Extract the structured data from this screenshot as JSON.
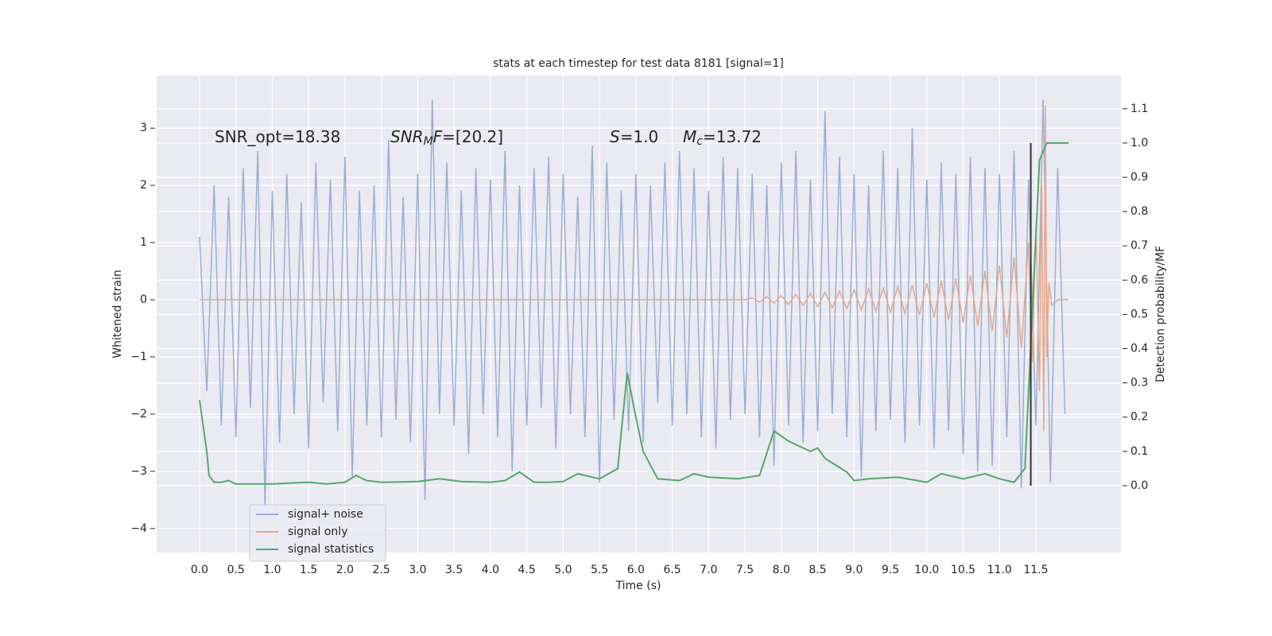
{
  "chart_data": {
    "type": "line",
    "title": "stats at each timestep for test data 8181 [signal=1]",
    "xlabel": "Time (s)",
    "ylabel": "Whitened strain",
    "y2label": "Detection probability/MF",
    "grid": true,
    "legend": "lower left",
    "xlim": [
      -0.59,
      12.67
    ],
    "ylim": [
      -4.42,
      3.92
    ],
    "y2lim": [
      -0.195,
      1.197
    ],
    "xticks": [
      {
        "value": 0,
        "label": "0.0"
      },
      {
        "value": 0.5,
        "label": "0.5"
      },
      {
        "value": 1,
        "label": "1.0"
      },
      {
        "value": 1.5,
        "label": "1.5"
      },
      {
        "value": 2,
        "label": "2.0"
      },
      {
        "value": 2.5,
        "label": "2.5"
      },
      {
        "value": 3,
        "label": "3.0"
      },
      {
        "value": 3.5,
        "label": "3.5"
      },
      {
        "value": 4,
        "label": "4.0"
      },
      {
        "value": 4.5,
        "label": "4.5"
      },
      {
        "value": 5,
        "label": "5.0"
      },
      {
        "value": 5.5,
        "label": "5.5"
      },
      {
        "value": 6,
        "label": "6.0"
      },
      {
        "value": 6.5,
        "label": "6.5"
      },
      {
        "value": 7,
        "label": "7.0"
      },
      {
        "value": 7.5,
        "label": "7.5"
      },
      {
        "value": 8,
        "label": "8.0"
      },
      {
        "value": 8.5,
        "label": "8.5"
      },
      {
        "value": 9,
        "label": "9.0"
      },
      {
        "value": 9.5,
        "label": "9.5"
      },
      {
        "value": 10,
        "label": "10.0"
      },
      {
        "value": 10.5,
        "label": "10.5"
      },
      {
        "value": 11,
        "label": "11.0"
      },
      {
        "value": 11.5,
        "label": "11.5"
      }
    ],
    "yticks": [
      {
        "value": -4,
        "label": "−4"
      },
      {
        "value": -3,
        "label": "−3"
      },
      {
        "value": -2,
        "label": "−2"
      },
      {
        "value": -1,
        "label": "−1"
      },
      0,
      1,
      2,
      3
    ],
    "y2ticks": [
      {
        "value": 0,
        "label": "0.0"
      },
      {
        "value": 0.1,
        "label": "0.1"
      },
      {
        "value": 0.2,
        "label": "0.2"
      },
      {
        "value": 0.3,
        "label": "0.3"
      },
      {
        "value": 0.4,
        "label": "0.4"
      },
      {
        "value": 0.5,
        "label": "0.5"
      },
      {
        "value": 0.6,
        "label": "0.6"
      },
      {
        "value": 0.7,
        "label": "0.7"
      },
      {
        "value": 0.8,
        "label": "0.8"
      },
      {
        "value": 0.9,
        "label": "0.9"
      },
      {
        "value": 1,
        "label": "1.0"
      },
      {
        "value": 1.1,
        "label": "1.1"
      }
    ],
    "annotations": [
      {
        "parts": [
          {
            "text": "SNR_opt=18.38",
            "style": "normal"
          }
        ]
      },
      {
        "parts": [
          {
            "text": "SNR",
            "style": "italic"
          },
          {
            "text": "M",
            "style": "sub"
          },
          {
            "text": "F",
            "style": "italic"
          },
          {
            "text": "=[20.2]",
            "style": "normal"
          }
        ]
      },
      {
        "parts": [
          {
            "text": "S",
            "style": "italic"
          },
          {
            "text": "=1.0",
            "style": "normal"
          }
        ]
      },
      {
        "parts": [
          {
            "text": "M",
            "style": "italic"
          },
          {
            "text": "c",
            "style": "sub"
          },
          {
            "text": "=13.72",
            "style": "normal"
          }
        ]
      }
    ],
    "vline": {
      "x": 11.43,
      "ymin": 0,
      "ymax": 1.0,
      "color": "#333333"
    },
    "series": [
      {
        "name": "signal+ noise",
        "color": "#9aaed4",
        "axis": "y",
        "x": [
          0,
          0.1,
          0.2,
          0.3,
          0.4,
          0.5,
          0.6,
          0.7,
          0.8,
          0.9,
          1,
          1.1,
          1.2,
          1.3,
          1.4,
          1.5,
          1.6,
          1.7,
          1.8,
          1.9,
          2,
          2.1,
          2.2,
          2.3,
          2.4,
          2.5,
          2.6,
          2.7,
          2.8,
          2.9,
          3,
          3.1,
          3.2,
          3.3,
          3.4,
          3.5,
          3.6,
          3.7,
          3.8,
          3.9,
          4,
          4.1,
          4.2,
          4.3,
          4.4,
          4.5,
          4.6,
          4.7,
          4.8,
          4.9,
          5,
          5.1,
          5.2,
          5.3,
          5.4,
          5.5,
          5.6,
          5.7,
          5.8,
          5.9,
          6,
          6.1,
          6.2,
          6.3,
          6.4,
          6.5,
          6.6,
          6.7,
          6.8,
          6.9,
          7,
          7.1,
          7.2,
          7.3,
          7.4,
          7.5,
          7.6,
          7.7,
          7.8,
          7.9,
          8,
          8.1,
          8.2,
          8.3,
          8.4,
          8.5,
          8.6,
          8.7,
          8.8,
          8.9,
          9,
          9.1,
          9.2,
          9.3,
          9.4,
          9.5,
          9.6,
          9.7,
          9.8,
          9.9,
          10,
          10.1,
          10.2,
          10.3,
          10.4,
          10.5,
          10.6,
          10.7,
          10.8,
          10.9,
          11,
          11.1,
          11.2,
          11.3,
          11.4,
          11.5,
          11.6,
          11.7,
          11.8,
          11.9
        ],
        "values": [
          1.1,
          -1.6,
          2.0,
          -2.2,
          1.8,
          -2.4,
          2.3,
          -1.9,
          2.6,
          -3.6,
          1.9,
          -2.5,
          2.2,
          -2.0,
          1.7,
          -2.6,
          2.4,
          -1.8,
          2.1,
          -2.3,
          2.5,
          -3.1,
          1.9,
          -2.2,
          2.0,
          -2.4,
          2.8,
          -2.1,
          1.8,
          -2.5,
          2.2,
          -3.5,
          3.5,
          -2.0,
          2.4,
          -2.2,
          1.9,
          -2.7,
          2.3,
          -2.0,
          2.1,
          -2.4,
          2.6,
          -3.0,
          2.0,
          -2.2,
          2.3,
          -1.9,
          2.5,
          -2.6,
          2.2,
          -2.0,
          1.8,
          -2.4,
          2.7,
          -3.2,
          2.4,
          -2.1,
          1.9,
          -2.3,
          2.2,
          -2.5,
          2.0,
          -1.8,
          2.4,
          -2.2,
          2.6,
          -2.0,
          2.3,
          -2.4,
          1.9,
          -2.6,
          2.5,
          -2.1,
          2.3,
          -2.0,
          2.2,
          -2.4,
          2.0,
          -2.9,
          2.4,
          -2.2,
          2.6,
          -2.5,
          2.1,
          -2.3,
          3.3,
          -2.0,
          2.5,
          -2.4,
          2.2,
          -3.1,
          2.0,
          -2.3,
          2.6,
          -2.1,
          2.3,
          -2.5,
          3.0,
          -2.2,
          2.1,
          -2.6,
          2.4,
          -2.3,
          2.2,
          -2.7,
          2.5,
          -3.0,
          2.3,
          -2.9,
          2.2,
          -2.4,
          2.6,
          -3.3,
          2.1,
          -2.2,
          3.5,
          -3.2,
          2.3,
          -2.0
        ]
      },
      {
        "name": "signal only",
        "color": "#e8a88a",
        "axis": "y",
        "x": [
          0,
          7.5,
          7.6,
          7.7,
          7.8,
          7.9,
          8,
          8.1,
          8.2,
          8.3,
          8.4,
          8.5,
          8.6,
          8.7,
          8.8,
          8.9,
          9,
          9.1,
          9.2,
          9.3,
          9.4,
          9.5,
          9.6,
          9.7,
          9.8,
          9.9,
          10,
          10.1,
          10.2,
          10.3,
          10.4,
          10.5,
          10.6,
          10.7,
          10.8,
          10.9,
          11,
          11.1,
          11.2,
          11.3,
          11.4,
          11.45,
          11.5,
          11.55,
          11.58,
          11.61,
          11.63,
          11.65,
          11.68,
          11.72,
          11.8,
          11.95
        ],
        "values": [
          0,
          0,
          0.03,
          -0.04,
          0.05,
          -0.06,
          0.07,
          -0.08,
          0.09,
          -0.1,
          0.11,
          -0.12,
          0.13,
          -0.14,
          0.15,
          -0.16,
          0.17,
          -0.18,
          0.19,
          -0.2,
          0.21,
          -0.22,
          0.23,
          -0.24,
          0.25,
          -0.27,
          0.29,
          -0.31,
          0.33,
          -0.35,
          0.37,
          -0.4,
          0.43,
          -0.46,
          0.5,
          -0.55,
          0.6,
          -0.66,
          0.74,
          -0.85,
          1.0,
          -1.1,
          1.3,
          -1.6,
          2.0,
          -2.3,
          3.4,
          -1.0,
          0.3,
          -0.1,
          0,
          0
        ]
      },
      {
        "name": "signal statistics",
        "color": "#55a868",
        "axis": "y2",
        "x": [
          0,
          0.1,
          0.13,
          0.2,
          0.3,
          0.4,
          0.5,
          1,
          1.5,
          1.75,
          2,
          2.15,
          2.3,
          2.5,
          3,
          3.3,
          3.6,
          4,
          4.2,
          4.4,
          4.6,
          4.8,
          5,
          5.2,
          5.5,
          5.75,
          5.88,
          6,
          6.1,
          6.3,
          6.6,
          6.8,
          7,
          7.4,
          7.7,
          7.9,
          8.1,
          8.4,
          8.5,
          8.6,
          8.9,
          9,
          9.2,
          9.6,
          10,
          10.2,
          10.5,
          10.8,
          11,
          11.2,
          11.35,
          11.45,
          11.55,
          11.65,
          11.95
        ],
        "values": [
          0.25,
          0.1,
          0.03,
          0.01,
          0.01,
          0.015,
          0.005,
          0.005,
          0.01,
          0.005,
          0.01,
          0.03,
          0.015,
          0.01,
          0.012,
          0.02,
          0.012,
          0.01,
          0.015,
          0.04,
          0.01,
          0.01,
          0.012,
          0.035,
          0.02,
          0.05,
          0.33,
          0.2,
          0.1,
          0.02,
          0.015,
          0.035,
          0.025,
          0.02,
          0.03,
          0.16,
          0.13,
          0.1,
          0.11,
          0.08,
          0.04,
          0.015,
          0.02,
          0.025,
          0.01,
          0.035,
          0.02,
          0.035,
          0.02,
          0.01,
          0.05,
          0.5,
          0.95,
          1.0,
          1.0
        ]
      }
    ]
  }
}
